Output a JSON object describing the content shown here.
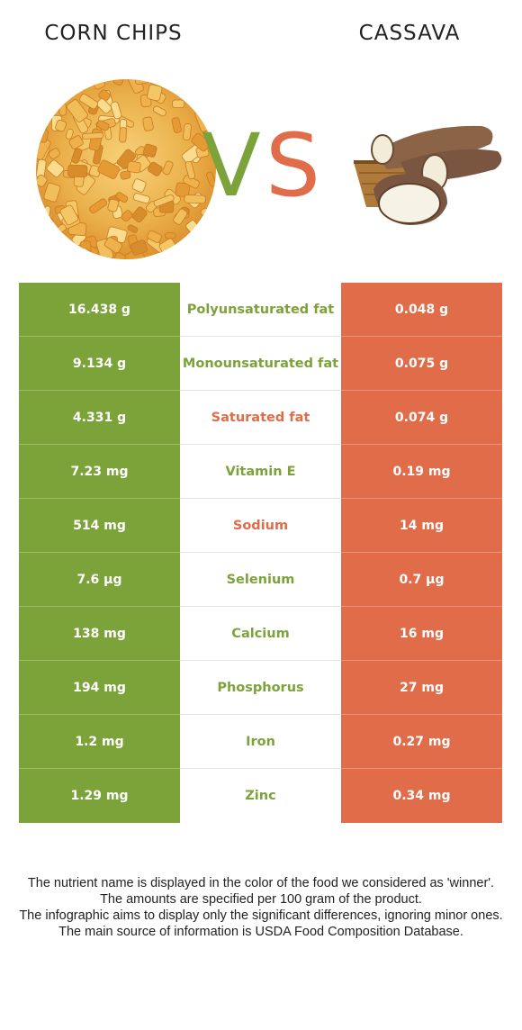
{
  "header": {
    "left_food": "CORN CHIPS",
    "right_food": "CASSAVA",
    "vs_v": "V",
    "vs_s": "S"
  },
  "colors": {
    "left": "#7ba33a",
    "right": "#e06c4a"
  },
  "images": {
    "left": "corn-chips-photo",
    "right": "cassava-photo"
  },
  "rows": [
    {
      "left": "16.438 g",
      "nutrient": "Polyunsaturated fat",
      "right": "0.048 g",
      "winner": "left"
    },
    {
      "left": "9.134 g",
      "nutrient": "Monounsaturated fat",
      "right": "0.075 g",
      "winner": "left"
    },
    {
      "left": "4.331 g",
      "nutrient": "Saturated fat",
      "right": "0.074 g",
      "winner": "right"
    },
    {
      "left": "7.23 mg",
      "nutrient": "Vitamin E",
      "right": "0.19 mg",
      "winner": "left"
    },
    {
      "left": "514 mg",
      "nutrient": "Sodium",
      "right": "14 mg",
      "winner": "right"
    },
    {
      "left": "7.6 µg",
      "nutrient": "Selenium",
      "right": "0.7 µg",
      "winner": "left"
    },
    {
      "left": "138 mg",
      "nutrient": "Calcium",
      "right": "16 mg",
      "winner": "left"
    },
    {
      "left": "194 mg",
      "nutrient": "Phosphorus",
      "right": "27 mg",
      "winner": "left"
    },
    {
      "left": "1.2 mg",
      "nutrient": "Iron",
      "right": "0.27 mg",
      "winner": "left"
    },
    {
      "left": "1.29 mg",
      "nutrient": "Zinc",
      "right": "0.34 mg",
      "winner": "left"
    }
  ],
  "footnotes": [
    "The nutrient name is displayed in the color of the food we considered as 'winner'.",
    "The amounts are specified per 100 gram of the product.",
    "The infographic aims to display only the significant differences, ignoring minor ones.",
    "The main source of information is USDA Food Composition Database."
  ]
}
